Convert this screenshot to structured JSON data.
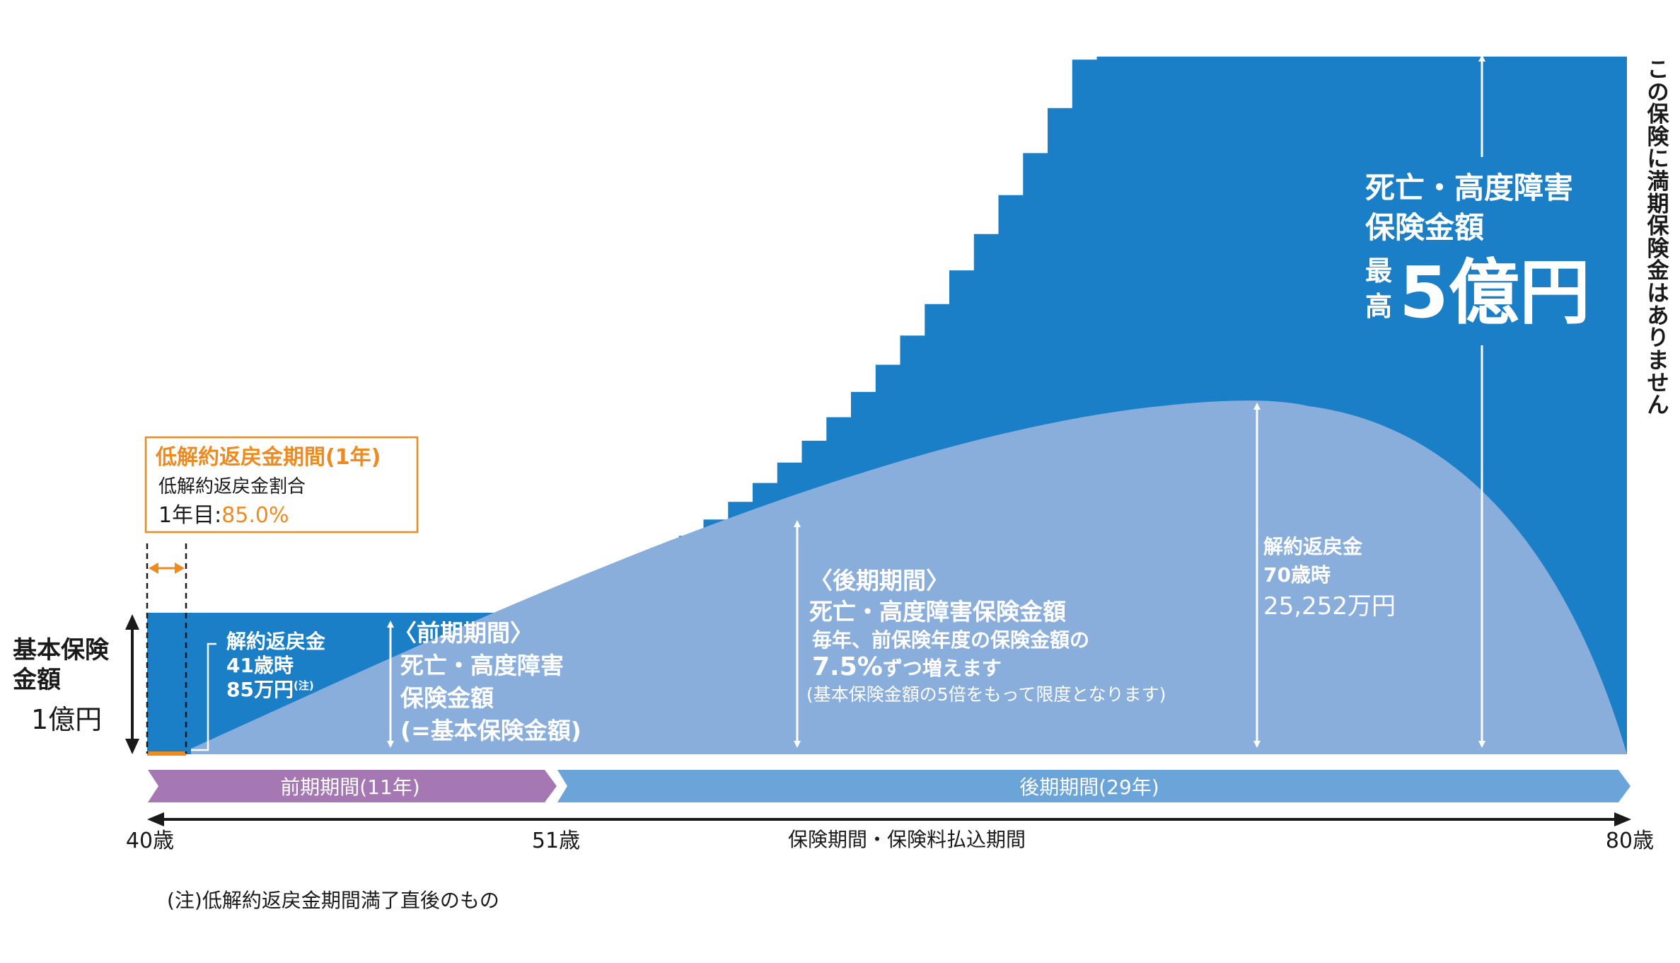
{
  "colors": {
    "death_benefit": "#1a7fc6",
    "surrender": "#8aaedc",
    "surrender_band": "#ef8a1e",
    "early_period": "#a678b3",
    "late_period": "#6ba4d9",
    "text": "#1a1a1a"
  },
  "low_surrender_box": {
    "title": "低解約返戻金期間(1年)",
    "ratio_label": "低解約返戻金割合",
    "first_year_label": "1年目:",
    "first_year_value": "85.0%"
  },
  "base_amount": {
    "line1": "基本保険",
    "line2": "金額",
    "value": "1億円"
  },
  "surrender_41": {
    "line1": "解約返戻金",
    "line2": "41歳時",
    "amount": "85万円",
    "note_mark": "(注)"
  },
  "early_period_text": {
    "title": "〈前期期間〉",
    "line1": "死亡・高度障害",
    "line2": "保険金額",
    "line3": "(=基本保険金額)"
  },
  "late_period_text": {
    "title": "〈後期期間〉",
    "line1": "死亡・高度障害保険金額",
    "line2": "毎年、前保険年度の保険金額の",
    "rate": "7.5%",
    "rate_suffix": "ずつ増えます",
    "line4": "(基本保険金額の5倍をもって限度となります)"
  },
  "surrender_70": {
    "line1": "解約返戻金",
    "line2": "70歳時",
    "amount": "25,252万円"
  },
  "max_benefit": {
    "line1": "死亡・高度障害",
    "line2": "保険金額",
    "prefix_top": "最",
    "prefix_bottom": "高",
    "value": "5億円"
  },
  "no_maturity_note": "この保険に満期保険金はありません",
  "period_bars": {
    "early": "前期期間(11年)",
    "late": "後期期間(29年)"
  },
  "axis": {
    "start": "40歳",
    "mid": "51歳",
    "end": "80歳",
    "caption": "保険期間・保険料払込期間"
  },
  "footnote": "(注)低解約返戻金期間満了直後のもの"
}
